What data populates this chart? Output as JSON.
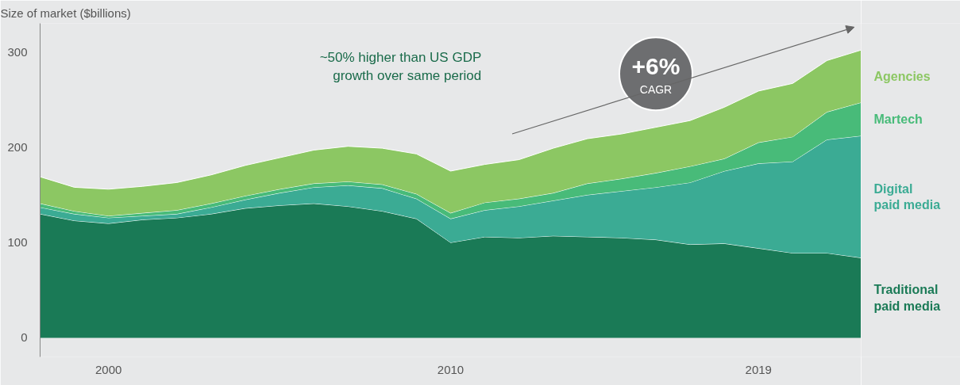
{
  "chart_data": {
    "type": "area",
    "stacked": true,
    "ylabel": "Size of market ($billions)",
    "x": [
      1998,
      1999,
      2000,
      2001,
      2002,
      2003,
      2004,
      2005,
      2006,
      2007,
      2008,
      2009,
      2010,
      2011,
      2012,
      2013,
      2014,
      2015,
      2016,
      2017,
      2018,
      2019,
      2020,
      2021,
      2022
    ],
    "series": [
      {
        "name": "Traditional paid media",
        "color": "#1a7a56",
        "values": [
          130,
          123,
          120,
          124,
          126,
          130,
          136,
          139,
          141,
          138,
          133,
          125,
          100,
          106,
          105,
          107,
          106,
          105,
          103,
          98,
          99,
          94,
          89,
          89,
          84
        ]
      },
      {
        "name": "Digital paid media",
        "color": "#3bab94",
        "values": [
          7,
          7,
          6,
          4,
          4,
          7,
          9,
          13,
          17,
          22,
          24,
          21,
          25,
          28,
          33,
          37,
          44,
          49,
          55,
          65,
          76,
          89,
          96,
          119,
          128
        ]
      },
      {
        "name": "Martech",
        "color": "#48bb79",
        "values": [
          4,
          3,
          2,
          3,
          4,
          4,
          4,
          4,
          4,
          4,
          4,
          5,
          6,
          8,
          8,
          8,
          12,
          13,
          15,
          17,
          13,
          22,
          26,
          29,
          35
        ]
      },
      {
        "name": "Agencies",
        "color": "#8cc763",
        "values": [
          28,
          25,
          28,
          28,
          29,
          30,
          32,
          33,
          35,
          37,
          38,
          42,
          44,
          40,
          41,
          47,
          47,
          47,
          48,
          48,
          54,
          54,
          56,
          54,
          55
        ]
      }
    ],
    "xlim": [
      1998,
      2022
    ],
    "ylim": [
      -20,
      330
    ],
    "xticks": [
      2000,
      2010,
      2019
    ],
    "yticks": [
      0,
      100,
      200,
      300
    ],
    "annotations": [
      "~50% higher than US GDP growth over same period",
      "+6% CAGR"
    ]
  }
}
